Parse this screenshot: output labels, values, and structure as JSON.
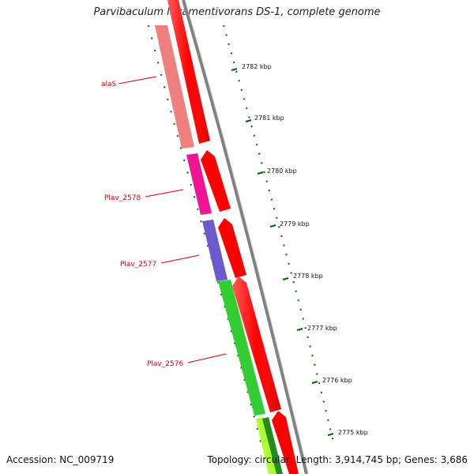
{
  "title": "Parvibaculum lavamentivorans DS-1, complete genome",
  "footer": {
    "accession": "Accession: NC_009719",
    "summary": "Topology: circular; Length: 3,914,745 bp; Genes: 3,686"
  },
  "ticks": [
    "2782 kbp",
    "2781 kbp",
    "2780 kbp",
    "2779 kbp",
    "2778 kbp",
    "2777 kbp",
    "2776 kbp",
    "2775 kbp"
  ],
  "genes": [
    {
      "name": "alaS",
      "color": "#f08080"
    },
    {
      "name": "Plav_2578",
      "color": "#ee1493"
    },
    {
      "name": "Plav_2577",
      "color": "#6a5acd"
    },
    {
      "name": "Plav_2576",
      "color": "#32cd32"
    }
  ],
  "colors": {
    "cds": "#ff0000",
    "backbone": "#808080",
    "tick": "#006400",
    "label": "#d40000"
  }
}
